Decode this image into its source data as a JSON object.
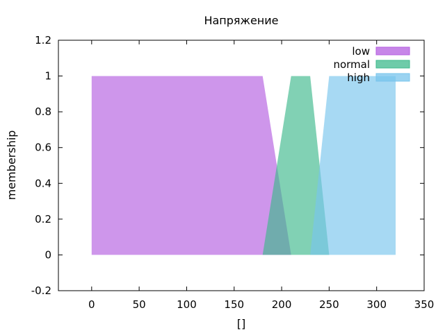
{
  "chart_data": {
    "type": "area",
    "title": "Напряжение",
    "xlabel": "[]",
    "ylabel": "membership",
    "xlim": [
      -35,
      350
    ],
    "ylim": [
      -0.2,
      1.2
    ],
    "x_ticks": [
      0,
      50,
      100,
      150,
      200,
      250,
      300,
      350
    ],
    "y_ticks": [
      -0.2,
      0,
      0.2,
      0.4,
      0.6,
      0.8,
      1,
      1.2
    ],
    "y_tick_labels": [
      "-0.2",
      "0",
      "0.2",
      "0.4",
      "0.6",
      "0.8",
      "1",
      "1.2"
    ],
    "legend_position": "top-right",
    "grid": false,
    "series": [
      {
        "name": "low",
        "color": "#b45ee0",
        "points": [
          [
            0,
            0
          ],
          [
            0,
            1
          ],
          [
            180,
            1
          ],
          [
            210,
            0
          ]
        ]
      },
      {
        "name": "normal",
        "color": "#3db98c",
        "points": [
          [
            180,
            0
          ],
          [
            210,
            1
          ],
          [
            230,
            1
          ],
          [
            250,
            0
          ]
        ]
      },
      {
        "name": "high",
        "color": "#78c4ec",
        "points": [
          [
            230,
            0
          ],
          [
            250,
            1
          ],
          [
            320,
            1
          ],
          [
            320,
            0
          ]
        ]
      }
    ]
  }
}
